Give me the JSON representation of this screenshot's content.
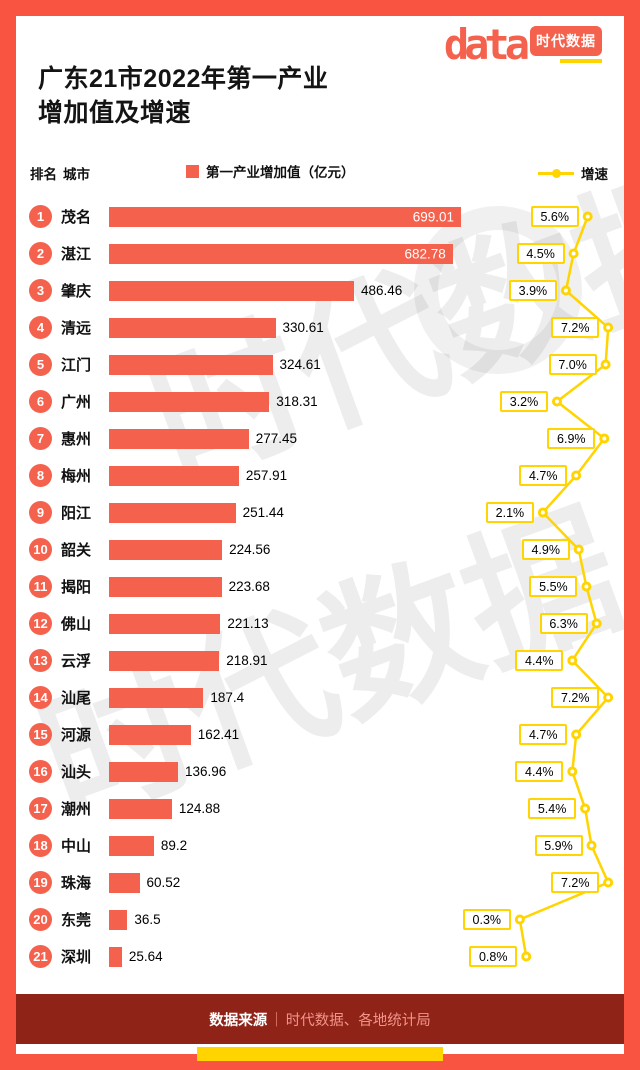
{
  "header": {
    "title_line1": "广东21市2022年第一产业",
    "title_line2": "增加值及增速",
    "logo": {
      "data_text": "data",
      "brand_text": "时代数据"
    }
  },
  "legend": {
    "rank_col": "排名",
    "city_col": "城市",
    "bar_label": "第一产业增加值（亿元）",
    "line_label": "增速"
  },
  "watermark": {
    "text": "时代数据"
  },
  "footer": {
    "label": "数据来源",
    "separator": "｜",
    "source": "时代数据、各地统计局"
  },
  "colors": {
    "coral": "#f4614d",
    "yellow": "#ffd400",
    "footerBg": "#8f2318",
    "border": "#f85441"
  },
  "chart_data": {
    "type": "bar",
    "orientation": "horizontal",
    "title": "广东21市2022年第一产业增加值及增速",
    "ranks": [
      1,
      2,
      3,
      4,
      5,
      6,
      7,
      8,
      9,
      10,
      11,
      12,
      13,
      14,
      15,
      16,
      17,
      18,
      19,
      20,
      21
    ],
    "categories": [
      "茂名",
      "湛江",
      "肇庆",
      "清远",
      "江门",
      "广州",
      "惠州",
      "梅州",
      "阳江",
      "韶关",
      "揭阳",
      "佛山",
      "云浮",
      "汕尾",
      "河源",
      "汕头",
      "潮州",
      "中山",
      "珠海",
      "东莞",
      "深圳"
    ],
    "series": [
      {
        "name": "第一产业增加值（亿元）",
        "unit": "亿元",
        "values": [
          699.01,
          682.78,
          486.46,
          330.61,
          324.61,
          318.31,
          277.45,
          257.91,
          251.44,
          224.56,
          223.68,
          221.13,
          218.91,
          187.4,
          162.41,
          136.96,
          124.88,
          89.2,
          60.52,
          36.5,
          25.64
        ]
      },
      {
        "name": "增速",
        "unit": "%",
        "values": [
          5.6,
          4.5,
          3.9,
          7.2,
          7.0,
          3.2,
          6.9,
          4.7,
          2.1,
          4.9,
          5.5,
          6.3,
          4.4,
          7.2,
          4.7,
          4.4,
          5.4,
          5.9,
          7.2,
          0.3,
          0.8
        ]
      }
    ],
    "value_labels": [
      "699.01",
      "682.78",
      "486.46",
      "330.61",
      "324.61",
      "318.31",
      "277.45",
      "257.91",
      "251.44",
      "224.56",
      "223.68",
      "221.13",
      "218.91",
      "187.4",
      "162.41",
      "136.96",
      "124.88",
      "89.2",
      "60.52",
      "36.5",
      "25.64"
    ],
    "growth_labels": [
      "5.6%",
      "4.5%",
      "3.9%",
      "7.2%",
      "7.0%",
      "3.2%",
      "6.9%",
      "4.7%",
      "2.1%",
      "4.9%",
      "5.5%",
      "6.3%",
      "4.4%",
      "7.2%",
      "4.7%",
      "4.4%",
      "5.4%",
      "5.9%",
      "7.2%",
      "0.3%",
      "0.8%"
    ],
    "value_axis_range": [
      0,
      700
    ],
    "growth_axis_range": [
      0,
      7.5
    ],
    "grid": false,
    "legend_position": "top"
  }
}
